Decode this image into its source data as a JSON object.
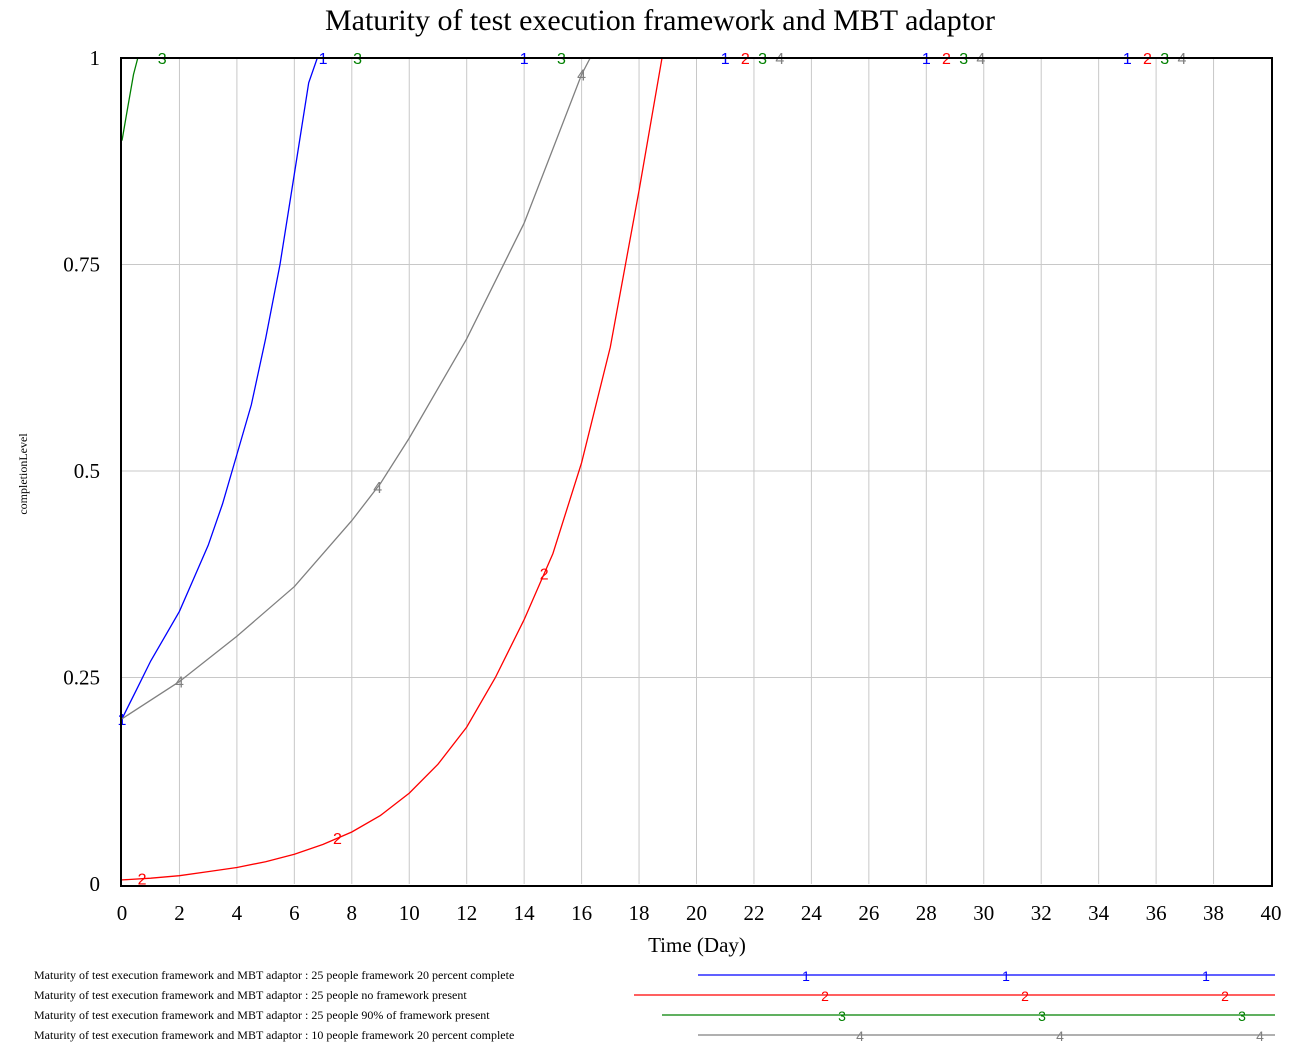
{
  "chart_data": {
    "type": "line",
    "title": "Maturity of test execution framework and MBT adaptor",
    "xlabel": "Time (Day)",
    "ylabel": "completionLevel",
    "xlim": [
      0,
      40
    ],
    "ylim": [
      0,
      1
    ],
    "x_ticks": [
      "0",
      "2",
      "4",
      "6",
      "8",
      "10",
      "12",
      "14",
      "16",
      "18",
      "20",
      "22",
      "24",
      "26",
      "28",
      "30",
      "32",
      "34",
      "36",
      "38",
      "40"
    ],
    "y_ticks": [
      "0",
      "0.25",
      "0.5",
      "0.75",
      "1"
    ],
    "grid": true,
    "legend_position": "bottom",
    "series": [
      {
        "marker": "1",
        "color": "#0000ff",
        "legend": "Maturity of test execution framework and MBT adaptor : 25 people framework 20 percent complete",
        "x": [
          0,
          0.5,
          1,
          1.5,
          2,
          2.5,
          3,
          3.5,
          4,
          4.5,
          5,
          5.5,
          6,
          6.5,
          6.8,
          40
        ],
        "y": [
          0.2,
          0.235,
          0.27,
          0.3,
          0.33,
          0.37,
          0.41,
          0.46,
          0.52,
          0.58,
          0.66,
          0.75,
          0.86,
          0.97,
          1.0,
          1.0
        ]
      },
      {
        "marker": "2",
        "color": "#ff0000",
        "legend": "Maturity of test execution framework and MBT adaptor : 25 people no framework present",
        "x": [
          0,
          1,
          2,
          3,
          4,
          5,
          6,
          7,
          8,
          9,
          10,
          11,
          12,
          13,
          14,
          15,
          16,
          17,
          18,
          18.8,
          40
        ],
        "y": [
          0.005,
          0.007,
          0.01,
          0.015,
          0.02,
          0.027,
          0.036,
          0.048,
          0.063,
          0.083,
          0.11,
          0.145,
          0.19,
          0.25,
          0.32,
          0.4,
          0.51,
          0.65,
          0.84,
          1.0,
          1.0
        ]
      },
      {
        "marker": "3",
        "color": "#008000",
        "legend": "Maturity of test execution framework and MBT adaptor : 25 people 90% of framework present",
        "x": [
          0,
          0.2,
          0.4,
          0.55,
          40
        ],
        "y": [
          0.9,
          0.94,
          0.98,
          1.0,
          1.0
        ]
      },
      {
        "marker": "4",
        "color": "#808080",
        "legend": "Maturity of test execution framework and MBT adaptor : 10 people framework 20 percent complete",
        "x": [
          0,
          2,
          4,
          6,
          8,
          9,
          10,
          12,
          14,
          15,
          16,
          16.3,
          40
        ],
        "y": [
          0.2,
          0.245,
          0.3,
          0.36,
          0.44,
          0.485,
          0.54,
          0.66,
          0.8,
          0.89,
          0.98,
          1.0,
          1.0
        ]
      }
    ]
  }
}
